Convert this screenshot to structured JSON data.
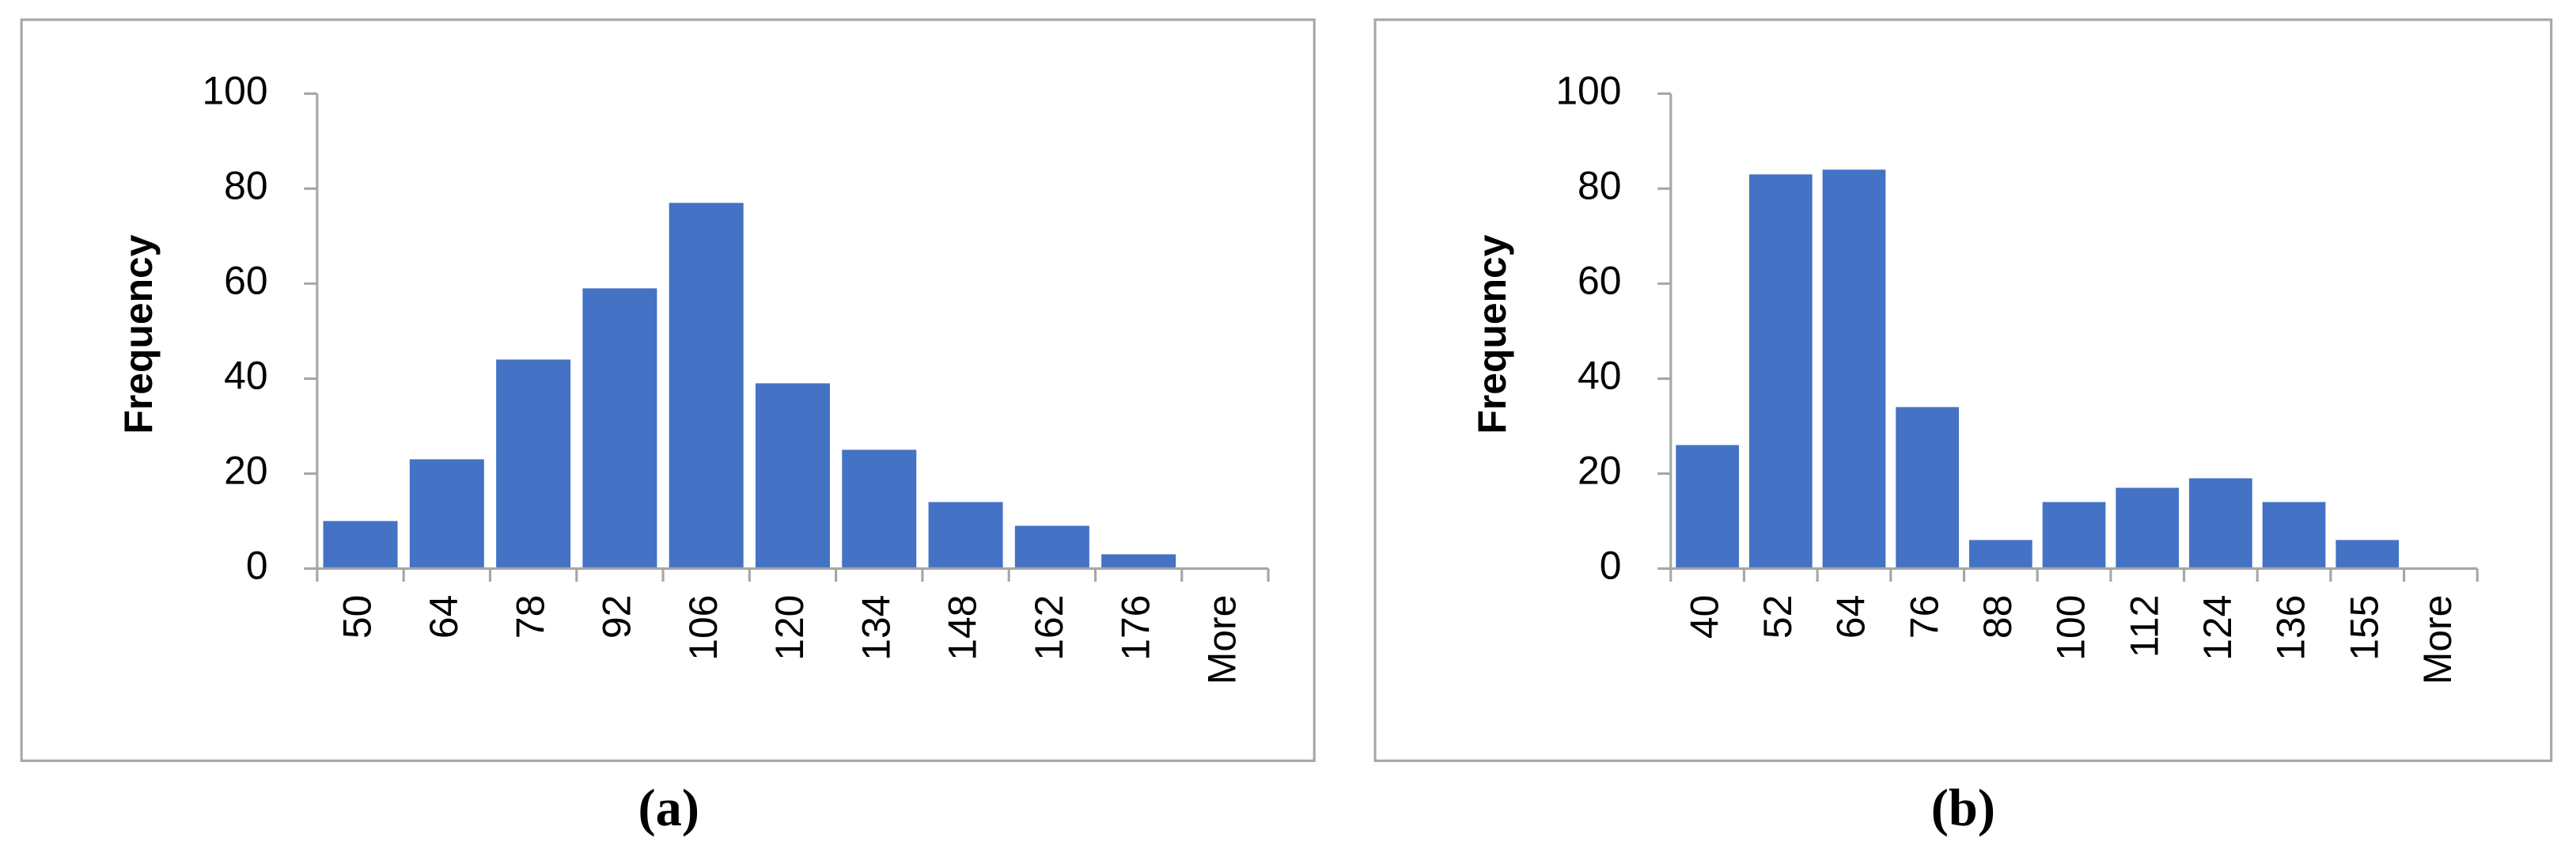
{
  "chart_data": [
    {
      "type": "bar",
      "ylabel": "Frequency",
      "caption": "(a)",
      "categories": [
        "50",
        "64",
        "78",
        "92",
        "106",
        "120",
        "134",
        "148",
        "162",
        "176",
        "More"
      ],
      "values": [
        10,
        23,
        44,
        59,
        77,
        39,
        25,
        14,
        9,
        3,
        0
      ],
      "color": "#4472c4",
      "ylim": [
        0,
        100
      ],
      "yticks": [
        0,
        20,
        40,
        60,
        80,
        100
      ]
    },
    {
      "type": "bar",
      "ylabel": "Frequency",
      "caption": "(b)",
      "categories": [
        "40",
        "52",
        "64",
        "76",
        "88",
        "100",
        "112",
        "124",
        "136",
        "155",
        "More"
      ],
      "values": [
        26,
        83,
        84,
        34,
        6,
        14,
        17,
        19,
        14,
        6,
        0
      ],
      "color": "#4472c4",
      "ylim": [
        0,
        100
      ],
      "yticks": [
        0,
        20,
        40,
        60,
        80,
        100
      ]
    }
  ]
}
